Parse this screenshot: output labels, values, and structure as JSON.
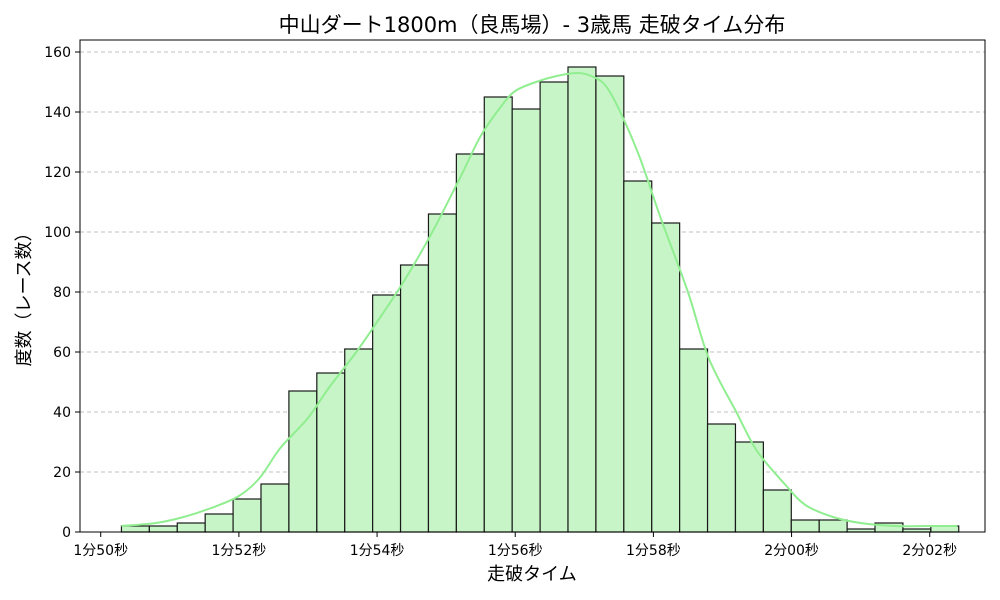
{
  "chart_data": {
    "type": "bar",
    "title": "中山ダート1800m（良馬場）- 3歳馬 走破タイム分布",
    "xlabel": "走破タイム",
    "ylabel": "度数（レース数）",
    "x_range_seconds": [
      109.7,
      122.8
    ],
    "ylim": [
      0,
      164
    ],
    "y_ticks": [
      0,
      20,
      40,
      60,
      80,
      100,
      120,
      140,
      160
    ],
    "x_ticks": [
      {
        "value": 110,
        "label": "1分50秒"
      },
      {
        "value": 112,
        "label": "1分52秒"
      },
      {
        "value": 114,
        "label": "1分54秒"
      },
      {
        "value": 116,
        "label": "1分56秒"
      },
      {
        "value": 118,
        "label": "1分58秒"
      },
      {
        "value": 120,
        "label": "2分00秒"
      },
      {
        "value": 122,
        "label": "2分02秒"
      }
    ],
    "bin_start": 110.3,
    "bin_width": 0.404,
    "values": [
      2,
      2,
      3,
      6,
      11,
      16,
      47,
      53,
      61,
      79,
      89,
      106,
      126,
      145,
      141,
      150,
      155,
      152,
      117,
      103,
      61,
      36,
      30,
      14,
      4,
      4,
      1,
      3,
      1,
      2
    ],
    "kde": {
      "x": [
        110.3,
        110.8,
        111.2,
        111.6,
        112.0,
        112.3,
        112.6,
        113.0,
        113.3,
        113.7,
        114.0,
        114.4,
        114.8,
        115.2,
        115.5,
        115.8,
        116.0,
        116.3,
        116.6,
        116.9,
        117.1,
        117.3,
        117.5,
        117.8,
        118.1,
        118.5,
        118.8,
        119.2,
        119.5,
        119.9,
        120.2,
        120.6,
        121.0,
        121.5,
        122.0,
        122.4
      ],
      "y": [
        2,
        3,
        5,
        8,
        12,
        18,
        28,
        38,
        48,
        60,
        70,
        84,
        100,
        118,
        132,
        142,
        147,
        150,
        152,
        153,
        152,
        149,
        141,
        125,
        105,
        80,
        58,
        40,
        27,
        16,
        9,
        5,
        3,
        2,
        2,
        2
      ]
    },
    "grid": "y-dashed",
    "colors": {
      "bar_fill": "#c7f5c7",
      "bar_stroke": "#1a1a1a",
      "kde_line": "#90ee90",
      "grid": "#c0c0c0"
    }
  }
}
